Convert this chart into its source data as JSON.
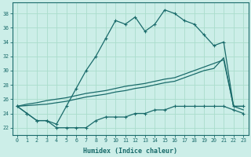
{
  "xlabel": "Humidex (Indice chaleur)",
  "bg_color": "#cceee8",
  "line_color": "#1a6b6b",
  "grid_color": "#aaddcc",
  "xlim": [
    -0.5,
    23.5
  ],
  "ylim": [
    21.0,
    39.5
  ],
  "yticks": [
    22,
    24,
    26,
    28,
    30,
    32,
    34,
    36,
    38
  ],
  "xticks": [
    0,
    1,
    2,
    3,
    4,
    5,
    6,
    7,
    8,
    9,
    10,
    11,
    12,
    13,
    14,
    15,
    16,
    17,
    18,
    19,
    20,
    21,
    22,
    23
  ],
  "s1": [
    25.0,
    24.0,
    23.0,
    23.0,
    22.5,
    25.0,
    27.5,
    30.0,
    32.0,
    34.5,
    37.0,
    36.5,
    37.5,
    35.5,
    36.5,
    38.5,
    38.0,
    37.0,
    36.5,
    35.0,
    33.5,
    34.0,
    25.0,
    25.0
  ],
  "s2": [
    25.0,
    24.0,
    23.0,
    23.0,
    22.0,
    22.0,
    22.0,
    22.0,
    23.0,
    23.5,
    23.5,
    23.5,
    24.0,
    24.0,
    24.5,
    24.5,
    25.0,
    25.0,
    25.0,
    25.0,
    25.0,
    25.0,
    24.5,
    24.0
  ],
  "s3": [
    25.0,
    25.3,
    25.5,
    25.8,
    26.0,
    26.2,
    26.5,
    26.8,
    27.0,
    27.2,
    27.5,
    27.8,
    28.0,
    28.2,
    28.5,
    28.8,
    29.0,
    29.5,
    30.0,
    30.5,
    31.0,
    31.5,
    25.0,
    25.0
  ],
  "s4": [
    25.0,
    25.1,
    25.2,
    25.3,
    25.5,
    25.7,
    26.0,
    26.3,
    26.5,
    26.7,
    27.0,
    27.2,
    27.5,
    27.7,
    28.0,
    28.3,
    28.5,
    29.0,
    29.5,
    30.0,
    30.3,
    31.8,
    25.0,
    24.5
  ]
}
